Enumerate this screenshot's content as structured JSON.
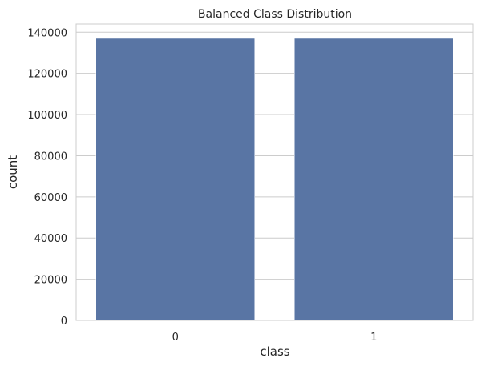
{
  "chart_data": {
    "type": "bar",
    "title": "Balanced Class Distribution",
    "xlabel": "class",
    "ylabel": "count",
    "categories": [
      "0",
      "1"
    ],
    "values": [
      137000,
      137000
    ],
    "ylim": [
      0,
      144000
    ],
    "yticks": [
      0,
      20000,
      40000,
      60000,
      80000,
      100000,
      120000,
      140000
    ],
    "grid": "y",
    "bar_color": "#5975a4"
  }
}
